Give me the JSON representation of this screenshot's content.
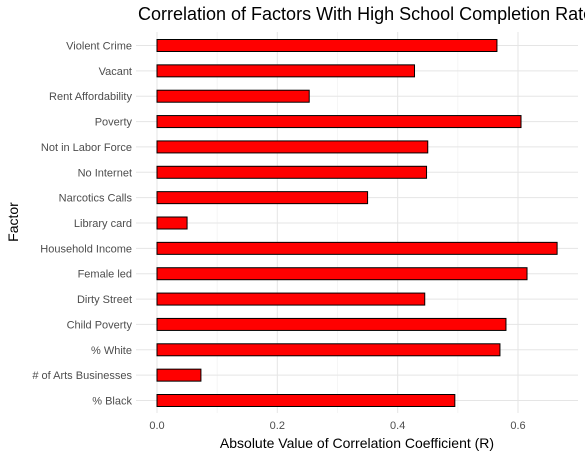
{
  "chart_data": {
    "type": "bar",
    "orientation": "horizontal",
    "title": "Correlation of Factors With High School Completion Rate",
    "xlabel": "Absolute Value of Correlation Coefficient (R)",
    "ylabel": "Factor",
    "categories": [
      "Violent Crime",
      "Vacant",
      "Rent Affordability",
      "Poverty",
      "Not in Labor Force",
      "No Internet",
      "Narcotics Calls",
      "Library card",
      "Household Income",
      "Female led",
      "Dirty Street",
      "Child Poverty",
      "% White",
      "# of Arts Businesses",
      "% Black"
    ],
    "values": [
      0.565,
      0.428,
      0.253,
      0.605,
      0.45,
      0.448,
      0.35,
      0.05,
      0.665,
      0.615,
      0.445,
      0.58,
      0.57,
      0.073,
      0.495
    ],
    "xlim": [
      0,
      0.7
    ],
    "xticks": [
      0.0,
      0.2,
      0.4,
      0.6
    ],
    "xtick_labels": [
      "0.0",
      "0.2",
      "0.4",
      "0.6"
    ],
    "bar_color": "#ff0000",
    "bar_edge_color": "#000000",
    "grid": true
  }
}
